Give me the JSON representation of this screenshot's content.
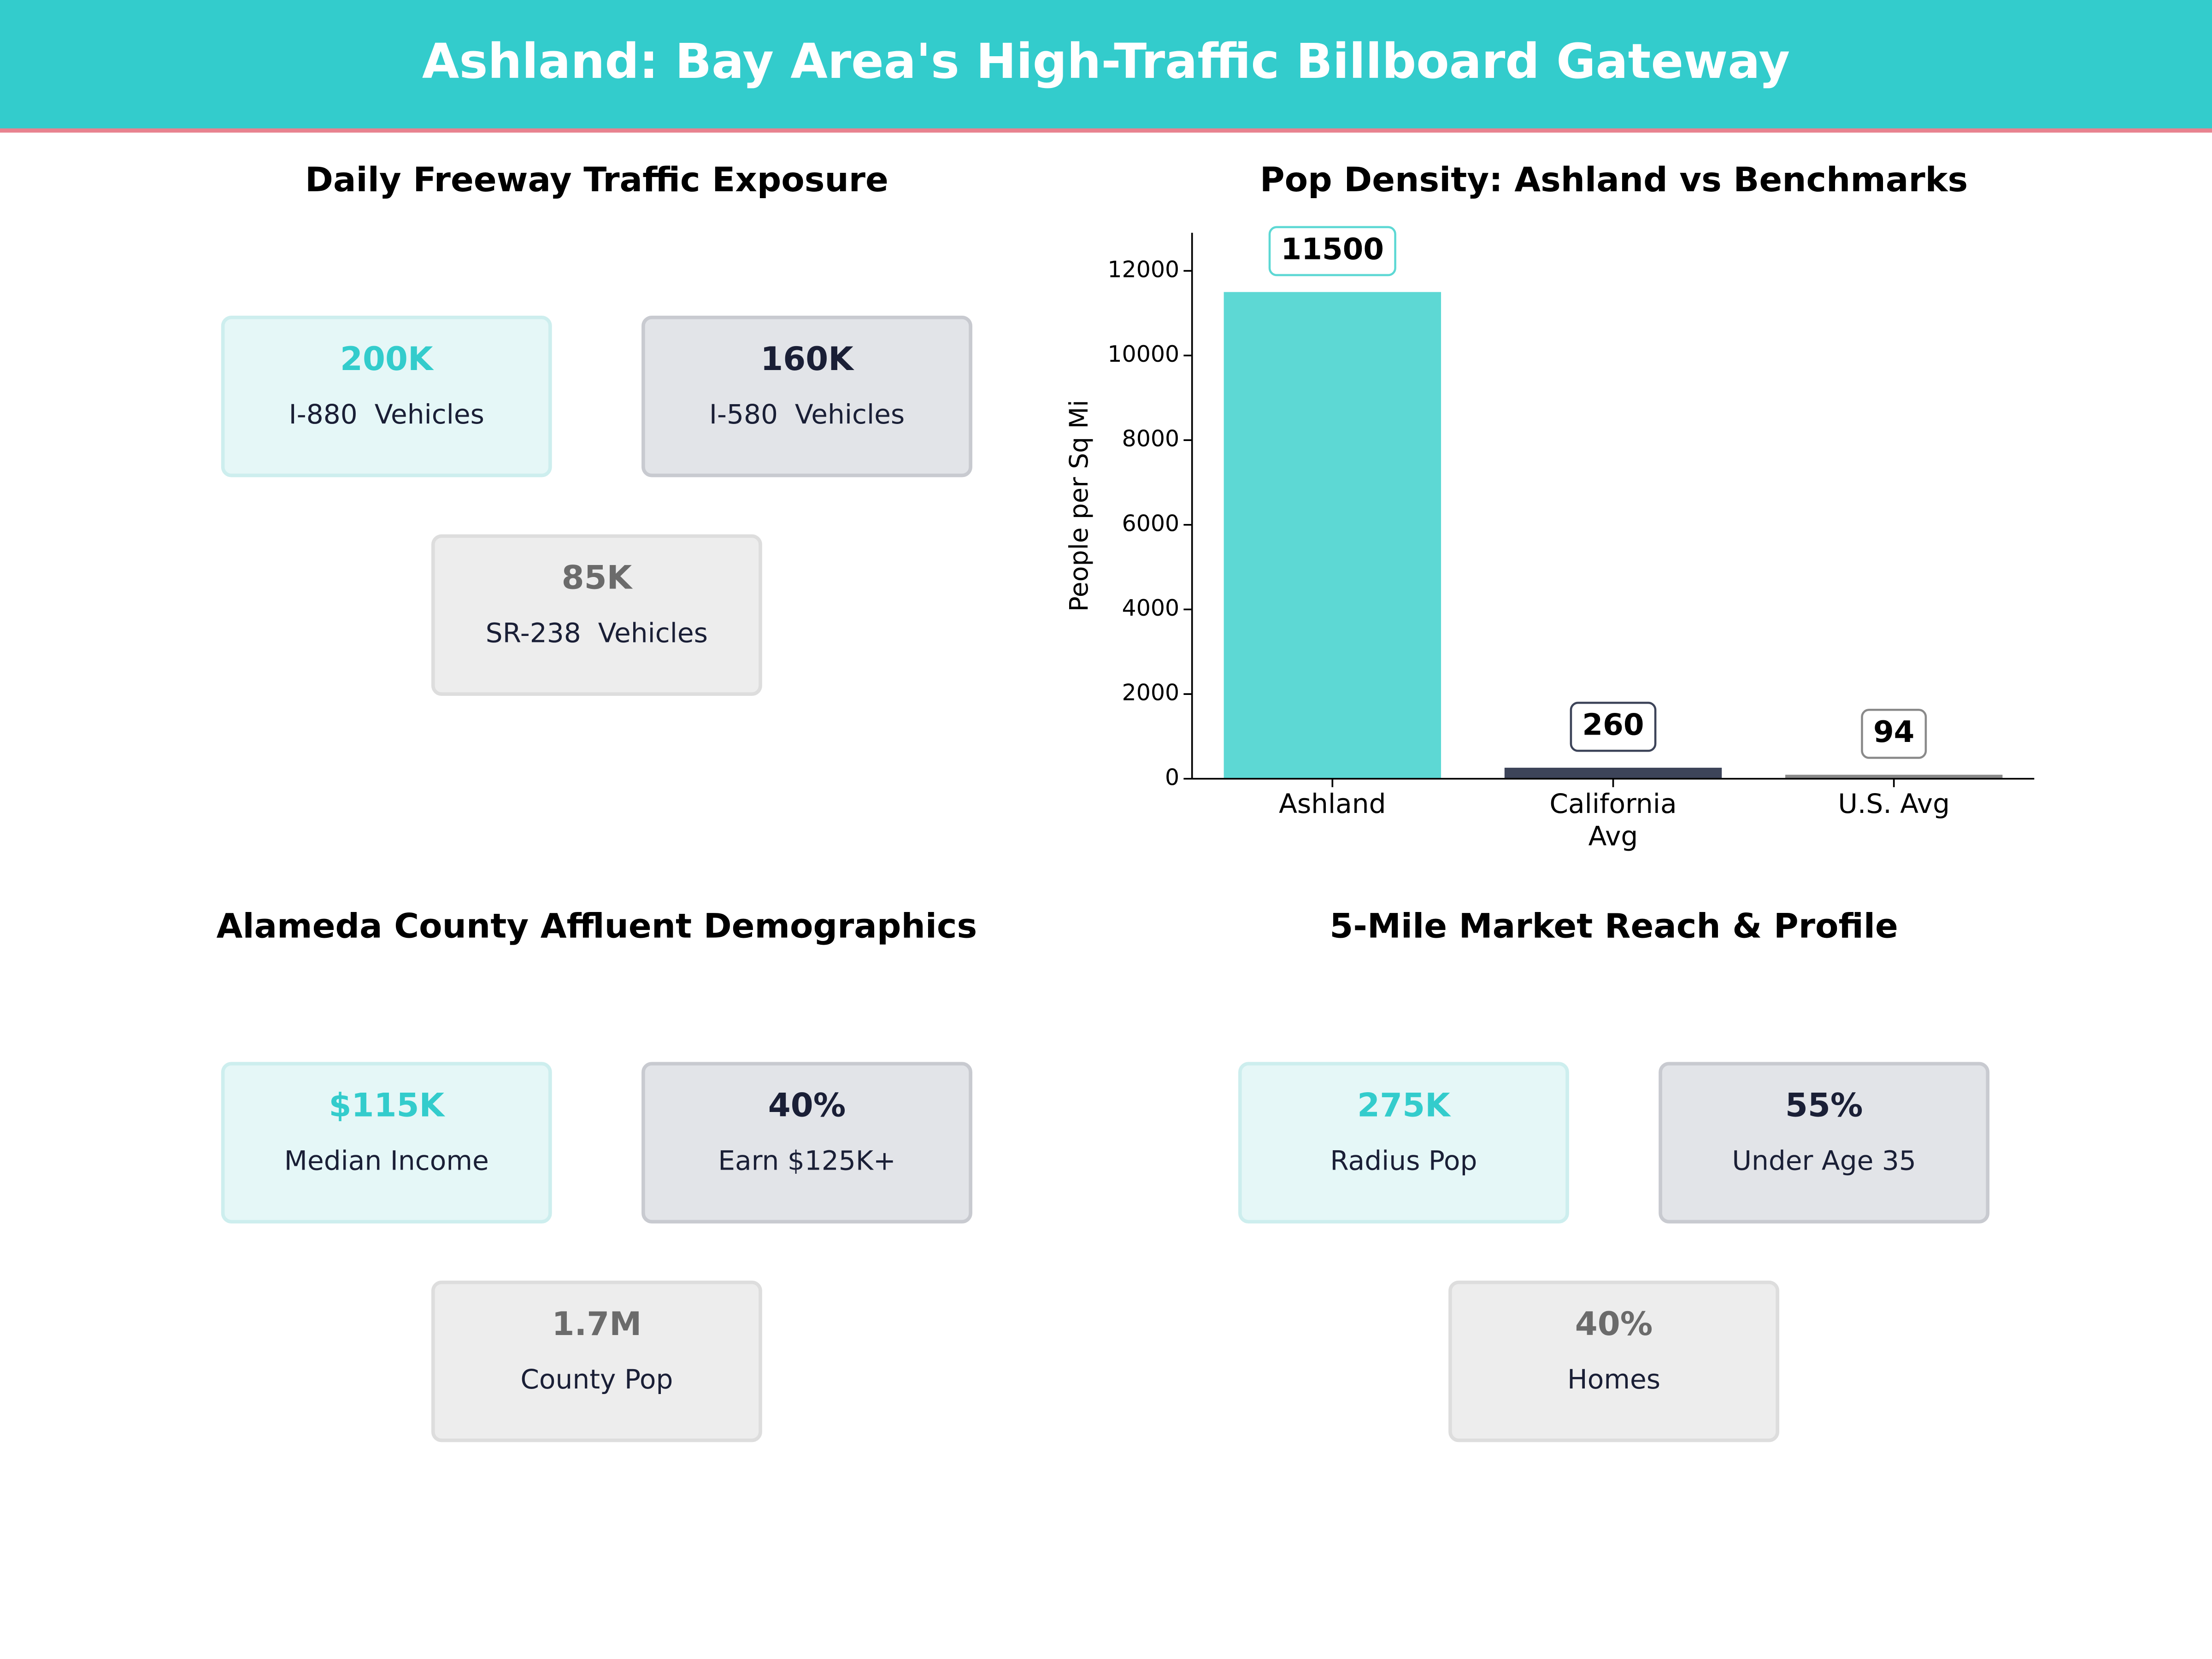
{
  "title": "Ashland: Bay Area's High-Traffic Billboard Gateway",
  "panels": [
    {
      "title": "Daily Freeway Traffic Exposure",
      "cards": [
        {
          "value": "200K",
          "label": "I-880  Vehicles"
        },
        {
          "value": "160K",
          "label": "I-580  Vehicles"
        },
        {
          "value": "85K",
          "label": "SR-238  Vehicles"
        }
      ]
    },
    {
      "title": "Alameda County Affluent Demographics",
      "cards": [
        {
          "value": "$115K",
          "label": "Median Income"
        },
        {
          "value": "40%",
          "label": "Earn $125K+"
        },
        {
          "value": "1.7M",
          "label": "County Pop"
        }
      ]
    },
    {
      "title": "5-Mile Market Reach & Profile",
      "cards": [
        {
          "value": "275K",
          "label": "Radius Pop"
        },
        {
          "value": "55%",
          "label": "Under Age 35"
        },
        {
          "value": "40%",
          "label": "Homes"
        }
      ]
    }
  ],
  "chart_data": {
    "type": "bar",
    "title": "Pop Density: Ashland vs Benchmarks",
    "ylabel": "People per Sq Mi",
    "categories": [
      "Ashland",
      "California Avg",
      "U.S. Avg"
    ],
    "values": [
      11500,
      260,
      94
    ],
    "colors": [
      "#5dd8d4",
      "#3d4459",
      "#8a8a8a"
    ],
    "ylim": [
      0,
      12900
    ],
    "yticks": [
      0,
      2000,
      4000,
      6000,
      8000,
      10000,
      12000
    ]
  }
}
